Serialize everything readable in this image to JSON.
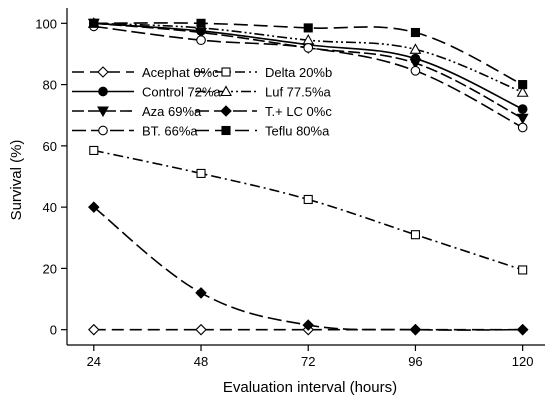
{
  "chart_data": {
    "type": "line",
    "xlabel": "Evaluation interval (hours)",
    "ylabel": "Survival (%)",
    "x": [
      24,
      48,
      72,
      96,
      120
    ],
    "xlim": [
      18,
      125
    ],
    "ylim": [
      -5,
      105
    ],
    "xticks": [
      24,
      48,
      72,
      96,
      120
    ],
    "yticks": [
      0,
      20,
      40,
      60,
      80,
      100
    ],
    "grid": false,
    "legend_position": "top-right inside",
    "series": [
      {
        "name": "Acephat 0%c",
        "values": [
          0,
          0,
          0,
          0,
          0
        ],
        "marker": "diamond-open",
        "dash": "12,6"
      },
      {
        "name": "Delta 20%b",
        "values": [
          58.5,
          51,
          42.5,
          31,
          19.5
        ],
        "marker": "square-open",
        "dash": "10,4,2,4"
      },
      {
        "name": "Control 72%a",
        "values": [
          100,
          97.5,
          93,
          88.5,
          72
        ],
        "marker": "circle-filled",
        "dash": ""
      },
      {
        "name": "Luf 77.5%a",
        "values": [
          100,
          98.5,
          94.5,
          91.5,
          77.5
        ],
        "marker": "triangle-open",
        "dash": "10,3,2,3,2,3"
      },
      {
        "name": "Aza 69%a",
        "values": [
          100,
          97,
          92,
          87,
          69
        ],
        "marker": "triangle-down-filled",
        "dash": "12,4"
      },
      {
        "name": "T.+ LC 0%c",
        "values": [
          40,
          12,
          1.5,
          0,
          0
        ],
        "marker": "diamond-filled",
        "dash": "14,5"
      },
      {
        "name": "BT. 66%a",
        "values": [
          99,
          94.5,
          92,
          84.5,
          66
        ],
        "marker": "circle-open",
        "dash": "14,5"
      },
      {
        "name": "Teflu 80%a",
        "values": [
          100,
          100,
          98.5,
          97,
          80
        ],
        "marker": "square-filled",
        "dash": "14,6"
      }
    ]
  }
}
